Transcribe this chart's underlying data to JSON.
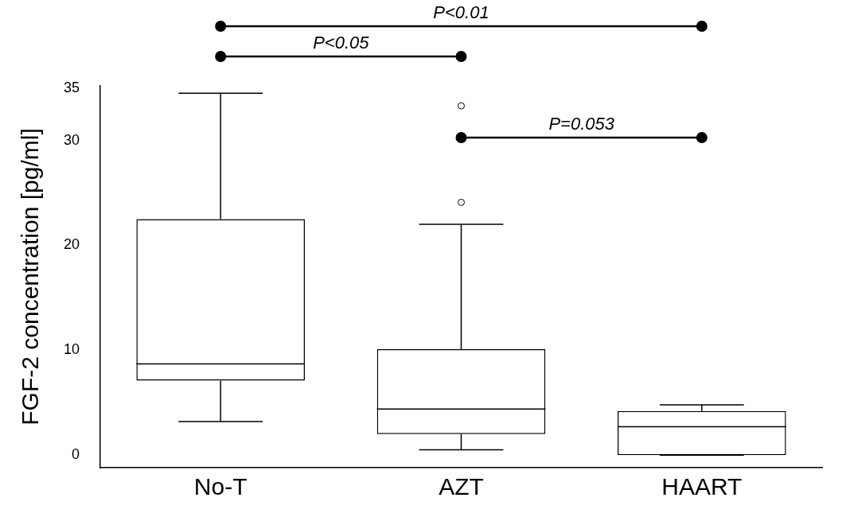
{
  "chart_data": {
    "type": "box",
    "ylabel": "FGF-2 concentration [pg/ml]",
    "categories": [
      "No-T",
      "AZT",
      "HAART"
    ],
    "boxes": [
      {
        "low": 3.2,
        "q1": 7.1,
        "median": 8.7,
        "q3": 22.5,
        "high": 34.5
      },
      {
        "low": 0.5,
        "q1": 2.0,
        "median": 4.4,
        "q3": 10.1,
        "high": 22.0,
        "outliers": [
          24.1,
          33.3
        ]
      },
      {
        "low": 0.0,
        "q1": 0.0,
        "median": 2.7,
        "q3": 4.2,
        "high": 4.8
      }
    ],
    "ylim": [
      -1.2,
      35.2
    ],
    "yticks": [
      0,
      10,
      20,
      30,
      35
    ],
    "grid": false,
    "legend": false,
    "annotations": [
      "P<0.01",
      "P<0.05",
      "P=0.053"
    ]
  }
}
